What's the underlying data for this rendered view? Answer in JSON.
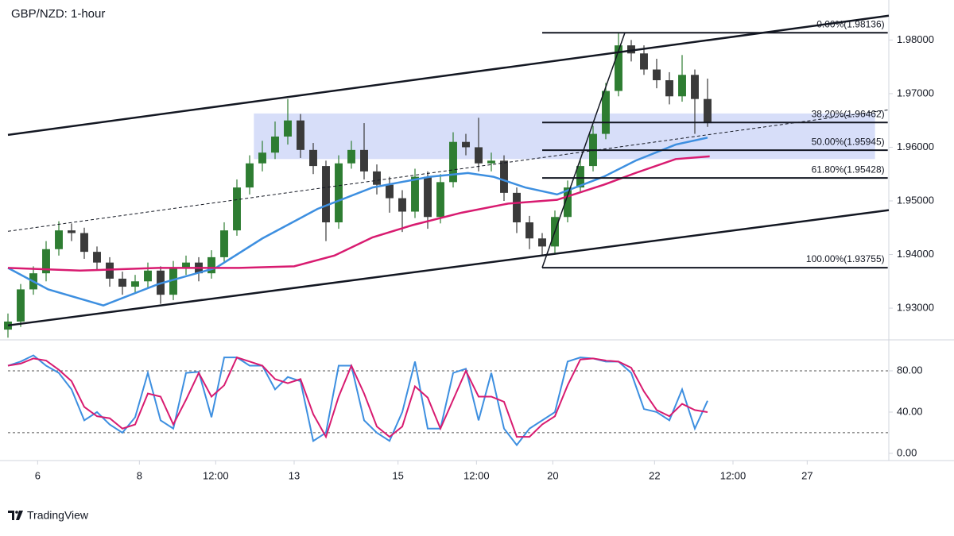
{
  "chart_data": [
    {
      "type": "candlestick",
      "title": "GBP/NZD: 1-hour",
      "xlim": [
        0,
        415.5
      ],
      "ylim": [
        1.92453,
        1.98746
      ],
      "xticks": [
        {
          "value": 14,
          "label": "6"
        },
        {
          "value": 62,
          "label": "8"
        },
        {
          "value": 98,
          "label": "12:00"
        },
        {
          "value": 135,
          "label": "13"
        },
        {
          "value": 184,
          "label": "15"
        },
        {
          "value": 221,
          "label": "12:00"
        },
        {
          "value": 257,
          "label": "20"
        },
        {
          "value": 305,
          "label": "22"
        },
        {
          "value": 342,
          "label": "12:00"
        },
        {
          "value": 377,
          "label": "27"
        }
      ],
      "yticks": [
        {
          "value": 1.98,
          "label": "1.98000"
        },
        {
          "value": 1.97,
          "label": "1.97000"
        },
        {
          "value": 1.96,
          "label": "1.96000"
        },
        {
          "value": 1.95,
          "label": "1.95000"
        },
        {
          "value": 1.94,
          "label": "1.94000"
        },
        {
          "value": 1.93,
          "label": "1.93000"
        }
      ],
      "up_color": "#2e7d32",
      "down_color": "#3a3a3a",
      "x": [
        0,
        6,
        12,
        18,
        24,
        30,
        36,
        42,
        48,
        54,
        60,
        66,
        72,
        78,
        84,
        90,
        96,
        102,
        108,
        114,
        120,
        126,
        132,
        138,
        144,
        150,
        156,
        162,
        168,
        174,
        180,
        186,
        192,
        198,
        204,
        210,
        216,
        222,
        228,
        234,
        240,
        246,
        252,
        258,
        264,
        270,
        276,
        282,
        288,
        294,
        300,
        306,
        312,
        318,
        324,
        330
      ],
      "open": [
        1.926,
        1.9275,
        1.9335,
        1.9365,
        1.941,
        1.9445,
        1.944,
        1.9405,
        1.9385,
        1.9355,
        1.934,
        1.935,
        1.937,
        1.9325,
        1.9375,
        1.9385,
        1.9365,
        1.9395,
        1.9445,
        1.9525,
        1.957,
        1.959,
        1.962,
        1.965,
        1.9595,
        1.9565,
        1.946,
        1.957,
        1.9595,
        1.9555,
        1.953,
        1.9505,
        1.948,
        1.9545,
        1.947,
        1.9535,
        1.961,
        1.96,
        1.957,
        1.9575,
        1.9515,
        1.946,
        1.943,
        1.9415,
        1.947,
        1.9525,
        1.9565,
        1.9625,
        1.9705,
        1.979,
        1.9775,
        1.9745,
        1.9725,
        1.9695,
        1.9735,
        1.969
      ],
      "high": [
        1.929,
        1.9345,
        1.9378,
        1.9425,
        1.9462,
        1.9458,
        1.945,
        1.9415,
        1.9395,
        1.9368,
        1.9362,
        1.9385,
        1.9378,
        1.9388,
        1.9398,
        1.9395,
        1.9408,
        1.946,
        1.954,
        1.9585,
        1.9612,
        1.9648,
        1.969,
        1.9662,
        1.9608,
        1.9575,
        1.9585,
        1.9612,
        1.9645,
        1.9568,
        1.9545,
        1.952,
        1.956,
        1.9555,
        1.955,
        1.9628,
        1.9625,
        1.9655,
        1.959,
        1.9585,
        1.9525,
        1.9472,
        1.944,
        1.9482,
        1.9538,
        1.9578,
        1.964,
        1.972,
        1.9814,
        1.98,
        1.979,
        1.9765,
        1.974,
        1.9772,
        1.9745,
        1.9728
      ],
      "low": [
        1.9245,
        1.9265,
        1.9325,
        1.935,
        1.9398,
        1.9425,
        1.9392,
        1.937,
        1.934,
        1.9325,
        1.9328,
        1.9338,
        1.9308,
        1.9315,
        1.9362,
        1.935,
        1.9355,
        1.9385,
        1.9435,
        1.9512,
        1.9555,
        1.9578,
        1.9605,
        1.958,
        1.955,
        1.9425,
        1.9448,
        1.956,
        1.954,
        1.9512,
        1.9478,
        1.9442,
        1.9468,
        1.9448,
        1.9458,
        1.9525,
        1.9585,
        1.9555,
        1.9555,
        1.95,
        1.944,
        1.941,
        1.9398,
        1.94,
        1.946,
        1.9515,
        1.9555,
        1.9615,
        1.9695,
        1.976,
        1.9735,
        1.971,
        1.968,
        1.9685,
        1.9625,
        1.9638
      ],
      "close": [
        1.9275,
        1.9335,
        1.9365,
        1.941,
        1.9445,
        1.944,
        1.9405,
        1.9385,
        1.9355,
        1.934,
        1.935,
        1.937,
        1.9325,
        1.9375,
        1.9385,
        1.9365,
        1.9395,
        1.9445,
        1.9525,
        1.957,
        1.959,
        1.962,
        1.965,
        1.9595,
        1.9565,
        1.946,
        1.957,
        1.9595,
        1.9555,
        1.953,
        1.9505,
        1.948,
        1.9545,
        1.947,
        1.9535,
        1.961,
        1.96,
        1.957,
        1.9575,
        1.9515,
        1.946,
        1.943,
        1.9415,
        1.947,
        1.9525,
        1.9565,
        1.9625,
        1.9705,
        1.979,
        1.9775,
        1.9745,
        1.9725,
        1.9695,
        1.9735,
        1.969,
        1.9645
      ],
      "series": [
        {
          "color": "#3d8fe0",
          "x": [
            0,
            19,
            45,
            71,
            98,
            120,
            146,
            172,
            199,
            217,
            229,
            244,
            259,
            281,
            296,
            315,
            330
          ],
          "values": [
            1.9375,
            1.9335,
            1.9305,
            1.9345,
            1.9375,
            1.943,
            1.9485,
            1.9525,
            1.9545,
            1.9552,
            1.9545,
            1.9525,
            1.9512,
            1.9545,
            1.9575,
            1.9605,
            1.9618
          ]
        },
        {
          "color": "#d81b70",
          "x": [
            0,
            34,
            71,
            109,
            135,
            154,
            172,
            191,
            214,
            236,
            259,
            281,
            296,
            315,
            331
          ],
          "values": [
            1.9375,
            1.937,
            1.9375,
            1.9375,
            1.9378,
            1.9398,
            1.9432,
            1.9455,
            1.9478,
            1.9495,
            1.9502,
            1.953,
            1.9552,
            1.9578,
            1.9583
          ]
        }
      ],
      "zone": {
        "color": "#c9d3f7",
        "x": [
          116,
          409
        ],
        "y": [
          1.9578,
          1.9663
        ]
      },
      "trend_lines": [
        {
          "style": "solid",
          "x": [
            0,
            415.5
          ],
          "y": [
            1.96231,
            1.98453
          ]
        },
        {
          "style": "solid",
          "x": [
            0,
            415.5
          ],
          "y": [
            1.92678,
            1.94828
          ]
        },
        {
          "style": "dashed",
          "x": [
            0,
            415.5
          ],
          "y": [
            1.94433,
            1.96699
          ]
        }
      ],
      "fib_x": [
        252,
        415
      ],
      "fib_diagonal": {
        "x": [
          252,
          291
        ],
        "y": [
          1.93755,
          1.98136
        ]
      },
      "fib_levels": [
        {
          "value": 1.98136,
          "label": "0.00%(1.98136)"
        },
        {
          "value": 1.96462,
          "label": "38.20%(1.96462)"
        },
        {
          "value": 1.95945,
          "label": "50.00%(1.95945)"
        },
        {
          "value": 1.95428,
          "label": "61.80%(1.95428)"
        },
        {
          "value": 1.93755,
          "label": "100.00%(1.93755)"
        }
      ]
    },
    {
      "type": "line",
      "xlim": [
        0,
        415.5
      ],
      "ylim": [
        -7,
        108.5
      ],
      "yticks": [
        {
          "value": 80,
          "label": "80.00"
        },
        {
          "value": 40,
          "label": "40.00"
        },
        {
          "value": 0,
          "label": "0.00"
        }
      ],
      "bands": [
        80,
        20
      ],
      "series": [
        {
          "color": "#3d8fe0",
          "x": [
            0,
            6,
            12,
            18,
            24,
            30,
            36,
            42,
            48,
            54,
            60,
            66,
            72,
            78,
            84,
            90,
            96,
            102,
            108,
            114,
            120,
            126,
            132,
            138,
            144,
            150,
            156,
            162,
            168,
            174,
            180,
            186,
            192,
            198,
            204,
            210,
            216,
            222,
            228,
            234,
            240,
            246,
            252,
            258,
            264,
            270,
            276,
            282,
            288,
            294,
            300,
            306,
            312,
            318,
            324,
            330
          ],
          "values": [
            85,
            89,
            95,
            85,
            78,
            62,
            32,
            40,
            28,
            20,
            35,
            78,
            32,
            24,
            78,
            79,
            35,
            93,
            93,
            85,
            85,
            62,
            74,
            70,
            12,
            20,
            85,
            85,
            32,
            20,
            12,
            40,
            89,
            24,
            24,
            78,
            82,
            32,
            78,
            24,
            8,
            24,
            32,
            40,
            89,
            93,
            92,
            89,
            89,
            78,
            43,
            40,
            32,
            62,
            24,
            51
          ]
        },
        {
          "color": "#d81b70",
          "x": [
            0,
            6,
            12,
            18,
            24,
            30,
            36,
            42,
            48,
            54,
            60,
            66,
            72,
            78,
            84,
            90,
            96,
            102,
            108,
            114,
            120,
            126,
            132,
            138,
            144,
            150,
            156,
            162,
            168,
            174,
            180,
            186,
            192,
            198,
            204,
            210,
            216,
            222,
            228,
            234,
            240,
            246,
            252,
            258,
            264,
            270,
            276,
            282,
            288,
            294,
            300,
            306,
            312,
            318,
            324,
            330
          ],
          "values": [
            85,
            87,
            92,
            90,
            81,
            70,
            45,
            36,
            34,
            24,
            28,
            58,
            55,
            28,
            52,
            78,
            55,
            66,
            93,
            89,
            85,
            72,
            68,
            72,
            38,
            16,
            55,
            85,
            58,
            26,
            16,
            26,
            65,
            54,
            24,
            52,
            80,
            55,
            55,
            50,
            16,
            16,
            28,
            36,
            66,
            91,
            92,
            90,
            89,
            83,
            60,
            42,
            36,
            48,
            42,
            40
          ]
        }
      ]
    }
  ],
  "footer": {
    "brand": "TradingView"
  }
}
